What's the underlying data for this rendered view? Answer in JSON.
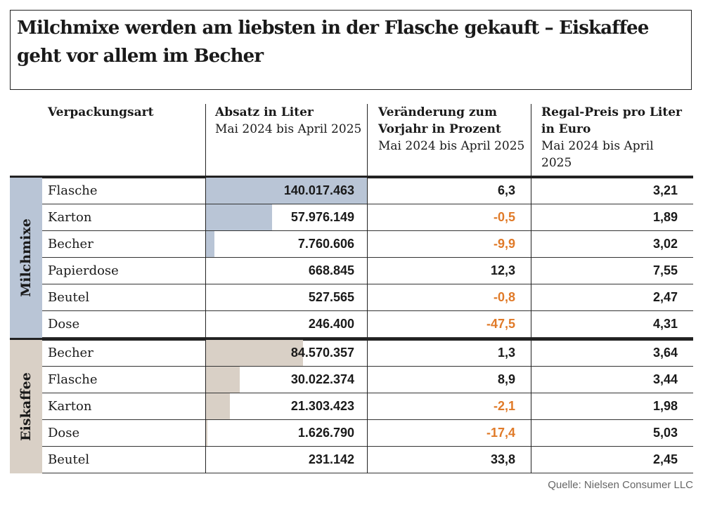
{
  "title": "Milchmixe werden am liebsten in der Flasche gekauft – Eiskaffee geht vor allem im Becher",
  "headers": [
    {
      "bold": "Verpackungsart",
      "sub": ""
    },
    {
      "bold": "Absatz in Liter",
      "sub": "Mai 2024 bis April 2025"
    },
    {
      "bold": "Veränderung zum Vorjahr in Prozent",
      "sub": "Mai 2024 bis April 2025"
    },
    {
      "bold": "Regal-Preis pro Liter in Euro",
      "sub": "Mai 2024 bis April 2025"
    }
  ],
  "colors": {
    "milchmixe": "#b9c5d6",
    "eiskaffee": "#d9d0c6",
    "negative": "#e07a28",
    "text": "#1a1a1a"
  },
  "chart_data": {
    "type": "table",
    "bar_column": "Absatz in Liter",
    "bar_max": 140017463,
    "groups": [
      {
        "name": "Milchmixe",
        "rows": [
          {
            "type": "Flasche",
            "absatz": "140.017.463",
            "absatz_value": 140017463,
            "change": "6,3",
            "price": "3,21"
          },
          {
            "type": "Karton",
            "absatz": "57.976.149",
            "absatz_value": 57976149,
            "change": "-0,5",
            "price": "1,89"
          },
          {
            "type": "Becher",
            "absatz": "7.760.606",
            "absatz_value": 7760606,
            "change": "-9,9",
            "price": "3,02"
          },
          {
            "type": "Papierdose",
            "absatz": "668.845",
            "absatz_value": 668845,
            "change": "12,3",
            "price": "7,55"
          },
          {
            "type": "Beutel",
            "absatz": "527.565",
            "absatz_value": 527565,
            "change": "-0,8",
            "price": "2,47"
          },
          {
            "type": "Dose",
            "absatz": "246.400",
            "absatz_value": 246400,
            "change": "-47,5",
            "price": "4,31"
          }
        ]
      },
      {
        "name": "Eiskaffee",
        "rows": [
          {
            "type": "Becher",
            "absatz": "84.570.357",
            "absatz_value": 84570357,
            "change": "1,3",
            "price": "3,64"
          },
          {
            "type": "Flasche",
            "absatz": "30.022.374",
            "absatz_value": 30022374,
            "change": "8,9",
            "price": "3,44"
          },
          {
            "type": "Karton",
            "absatz": "21.303.423",
            "absatz_value": 21303423,
            "change": "-2,1",
            "price": "1,98"
          },
          {
            "type": "Dose",
            "absatz": "1.626.790",
            "absatz_value": 1626790,
            "change": "-17,4",
            "price": "5,03"
          },
          {
            "type": "Beutel",
            "absatz": "231.142",
            "absatz_value": 231142,
            "change": "33,8",
            "price": "2,45"
          }
        ]
      }
    ]
  },
  "source": "Quelle: Nielsen Consumer LLC"
}
